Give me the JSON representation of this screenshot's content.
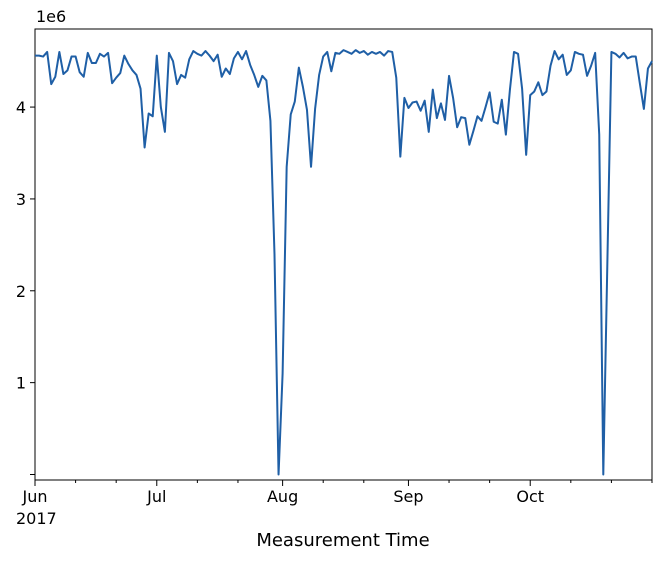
{
  "chart_data": {
    "type": "line",
    "title": "",
    "xlabel": "Measurement Time",
    "ylabel": "",
    "y_offset_label": "1e6",
    "year_label": "2017",
    "xlim": [
      "2017-06-01",
      "2017-10-31"
    ],
    "ylim": [
      -0.06,
      4.85
    ],
    "y_scale": 1000000,
    "y_ticks": [
      {
        "value": 0,
        "label": ""
      },
      {
        "value": 1,
        "label": "1"
      },
      {
        "value": 2,
        "label": "2"
      },
      {
        "value": 3,
        "label": "3"
      },
      {
        "value": 4,
        "label": "4"
      }
    ],
    "x_major_ticks": [
      {
        "date": "2017-06-01",
        "label": "Jun"
      },
      {
        "date": "2017-07-01",
        "label": "Jul"
      },
      {
        "date": "2017-08-01",
        "label": "Aug"
      },
      {
        "date": "2017-09-01",
        "label": "Sep"
      },
      {
        "date": "2017-10-01",
        "label": "Oct"
      }
    ],
    "x_minor_ticks": [
      "2017-06-11",
      "2017-06-21",
      "2017-07-11",
      "2017-07-21",
      "2017-08-11",
      "2017-08-21",
      "2017-09-11",
      "2017-09-21",
      "2017-10-11",
      "2017-10-21",
      "2017-10-31"
    ],
    "grid": false,
    "legend": "none",
    "line_color": "#1f5fa6",
    "series": [
      {
        "x": [
          "2017-06-01",
          "2017-06-02",
          "2017-06-03",
          "2017-06-04",
          "2017-06-05",
          "2017-06-06",
          "2017-06-07",
          "2017-06-08",
          "2017-06-09",
          "2017-06-10",
          "2017-06-11",
          "2017-06-12",
          "2017-06-13",
          "2017-06-14",
          "2017-06-15",
          "2017-06-16",
          "2017-06-17",
          "2017-06-18",
          "2017-06-19",
          "2017-06-20",
          "2017-06-21",
          "2017-06-22",
          "2017-06-23",
          "2017-06-24",
          "2017-06-25",
          "2017-06-26",
          "2017-06-27",
          "2017-06-28",
          "2017-06-29",
          "2017-06-30",
          "2017-07-01",
          "2017-07-02",
          "2017-07-03",
          "2017-07-04",
          "2017-07-05",
          "2017-07-06",
          "2017-07-07",
          "2017-07-08",
          "2017-07-09",
          "2017-07-10",
          "2017-07-11",
          "2017-07-12",
          "2017-07-13",
          "2017-07-14",
          "2017-07-15",
          "2017-07-16",
          "2017-07-17",
          "2017-07-18",
          "2017-07-19",
          "2017-07-20",
          "2017-07-21",
          "2017-07-22",
          "2017-07-23",
          "2017-07-24",
          "2017-07-25",
          "2017-07-26",
          "2017-07-27",
          "2017-07-28",
          "2017-07-29",
          "2017-07-30",
          "2017-07-31",
          "2017-08-01",
          "2017-08-02",
          "2017-08-03",
          "2017-08-04",
          "2017-08-05",
          "2017-08-06",
          "2017-08-07",
          "2017-08-08",
          "2017-08-09",
          "2017-08-10",
          "2017-08-11",
          "2017-08-12",
          "2017-08-13",
          "2017-08-14",
          "2017-08-15",
          "2017-08-16",
          "2017-08-17",
          "2017-08-18",
          "2017-08-19",
          "2017-08-20",
          "2017-08-21",
          "2017-08-22",
          "2017-08-23",
          "2017-08-24",
          "2017-08-25",
          "2017-08-26",
          "2017-08-27",
          "2017-08-28",
          "2017-08-29",
          "2017-08-30",
          "2017-08-31",
          "2017-09-01",
          "2017-09-02",
          "2017-09-03",
          "2017-09-04",
          "2017-09-05",
          "2017-09-06",
          "2017-09-07",
          "2017-09-08",
          "2017-09-09",
          "2017-09-10",
          "2017-09-11",
          "2017-09-12",
          "2017-09-13",
          "2017-09-14",
          "2017-09-15",
          "2017-09-16",
          "2017-09-17",
          "2017-09-18",
          "2017-09-19",
          "2017-09-20",
          "2017-09-21",
          "2017-09-22",
          "2017-09-23",
          "2017-09-24",
          "2017-09-25",
          "2017-09-26",
          "2017-09-27",
          "2017-09-28",
          "2017-09-29",
          "2017-09-30",
          "2017-10-01",
          "2017-10-02",
          "2017-10-03",
          "2017-10-04",
          "2017-10-05",
          "2017-10-06",
          "2017-10-07",
          "2017-10-08",
          "2017-10-09",
          "2017-10-10",
          "2017-10-11",
          "2017-10-12",
          "2017-10-13",
          "2017-10-14",
          "2017-10-15",
          "2017-10-16",
          "2017-10-17",
          "2017-10-18",
          "2017-10-19",
          "2017-10-20",
          "2017-10-21",
          "2017-10-22",
          "2017-10-23",
          "2017-10-24",
          "2017-10-25",
          "2017-10-26",
          "2017-10-27",
          "2017-10-28",
          "2017-10-29",
          "2017-10-30",
          "2017-10-31"
        ],
        "values": [
          4.56,
          4.56,
          4.55,
          4.6,
          4.25,
          4.33,
          4.6,
          4.36,
          4.4,
          4.55,
          4.55,
          4.38,
          4.33,
          4.59,
          4.48,
          4.48,
          4.58,
          4.55,
          4.59,
          4.26,
          4.32,
          4.37,
          4.56,
          4.47,
          4.4,
          4.35,
          4.2,
          3.56,
          3.93,
          3.9,
          4.56,
          4.0,
          3.73,
          4.59,
          4.5,
          4.25,
          4.35,
          4.32,
          4.52,
          4.61,
          4.58,
          4.56,
          4.61,
          4.56,
          4.5,
          4.57,
          4.33,
          4.42,
          4.36,
          4.53,
          4.6,
          4.52,
          4.61,
          4.46,
          4.35,
          4.22,
          4.34,
          4.29,
          3.85,
          2.4,
          0.0,
          1.1,
          3.35,
          3.92,
          4.06,
          4.43,
          4.22,
          3.97,
          3.35,
          3.98,
          4.35,
          4.55,
          4.6,
          4.39,
          4.59,
          4.58,
          4.62,
          4.6,
          4.58,
          4.62,
          4.59,
          4.61,
          4.57,
          4.6,
          4.58,
          4.6,
          4.56,
          4.61,
          4.6,
          4.32,
          3.46,
          4.1,
          3.99,
          4.05,
          4.06,
          3.96,
          4.07,
          3.73,
          4.19,
          3.88,
          4.04,
          3.86,
          4.34,
          4.1,
          3.78,
          3.89,
          3.88,
          3.59,
          3.74,
          3.9,
          3.85,
          4.0,
          4.16,
          3.84,
          3.82,
          4.08,
          3.7,
          4.19,
          4.6,
          4.58,
          4.2,
          3.48,
          4.13,
          4.17,
          4.27,
          4.13,
          4.17,
          4.45,
          4.61,
          4.52,
          4.57,
          4.35,
          4.4,
          4.6,
          4.58,
          4.57,
          4.34,
          4.45,
          4.59,
          3.7,
          0.0,
          2.3,
          4.6,
          4.58,
          4.54,
          4.59,
          4.53,
          4.55,
          4.55,
          4.26,
          3.98,
          4.42,
          4.5
        ]
      }
    ]
  }
}
